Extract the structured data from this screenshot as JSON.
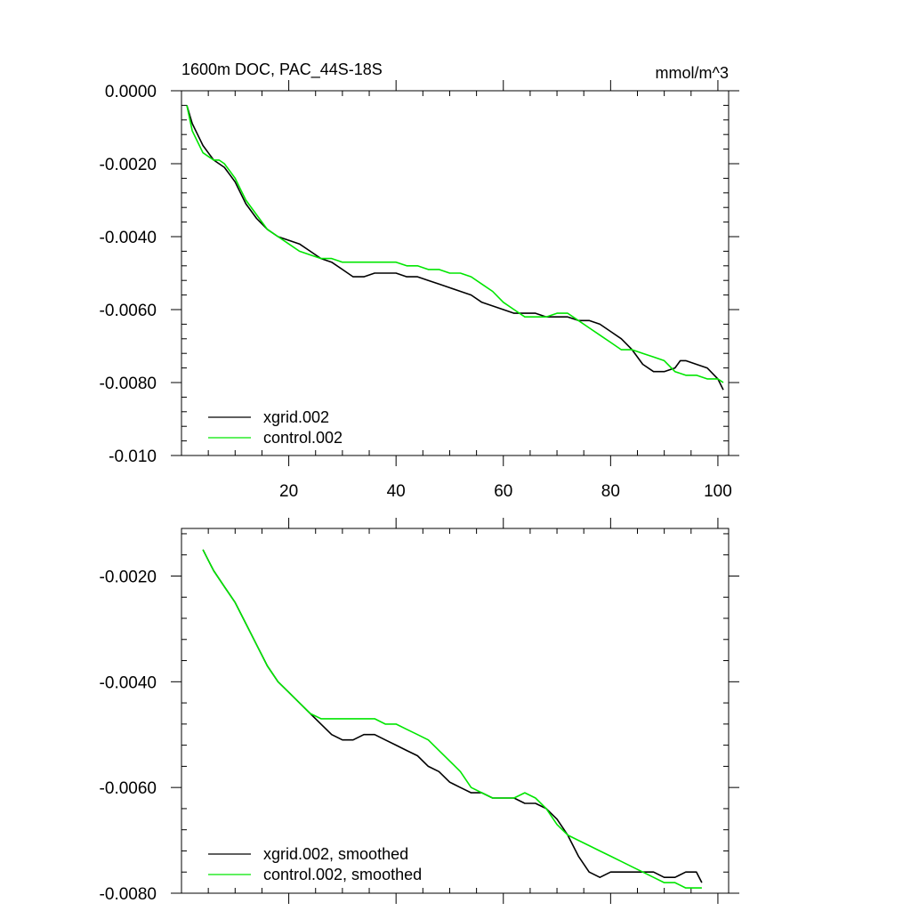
{
  "chart_data": [
    {
      "type": "line",
      "title": "1600m DOC, PAC_44S-18S",
      "units": "mmol/m^3",
      "xlim": [
        0,
        102
      ],
      "ylim": [
        -0.01,
        0.0
      ],
      "x_ticks": [
        20,
        40,
        60,
        80,
        100
      ],
      "x_tick_labels": [
        "20",
        "40",
        "60",
        "80",
        "100"
      ],
      "y_ticks": [
        0.0,
        -0.002,
        -0.004,
        -0.006,
        -0.008,
        -0.01
      ],
      "y_tick_labels": [
        "0.0000",
        "-0.0020",
        "-0.0040",
        "-0.0060",
        "-0.0080",
        "-0.010"
      ],
      "legend_position": "bottom-left",
      "series": [
        {
          "name": "xgrid.002",
          "color": "#000000",
          "x": [
            1,
            2,
            3,
            4,
            5,
            6,
            7,
            8,
            9,
            10,
            11,
            12,
            14,
            16,
            18,
            20,
            22,
            24,
            26,
            28,
            30,
            32,
            34,
            36,
            38,
            40,
            42,
            44,
            46,
            48,
            50,
            52,
            54,
            56,
            58,
            60,
            62,
            64,
            66,
            68,
            70,
            72,
            74,
            76,
            78,
            80,
            82,
            84,
            86,
            88,
            90,
            92,
            93,
            94,
            96,
            98,
            100,
            101
          ],
          "values": [
            -0.0004,
            -0.0009,
            -0.0012,
            -0.0015,
            -0.0017,
            -0.0019,
            -0.002,
            -0.0021,
            -0.0023,
            -0.0025,
            -0.0028,
            -0.0031,
            -0.0035,
            -0.0038,
            -0.004,
            -0.0041,
            -0.0042,
            -0.0044,
            -0.0046,
            -0.0047,
            -0.0049,
            -0.0051,
            -0.0051,
            -0.005,
            -0.005,
            -0.005,
            -0.0051,
            -0.0051,
            -0.0052,
            -0.0053,
            -0.0054,
            -0.0055,
            -0.0056,
            -0.0058,
            -0.0059,
            -0.006,
            -0.0061,
            -0.0061,
            -0.0061,
            -0.0062,
            -0.0062,
            -0.0062,
            -0.0063,
            -0.0063,
            -0.0064,
            -0.0066,
            -0.0068,
            -0.0071,
            -0.0075,
            -0.0077,
            -0.0077,
            -0.0076,
            -0.0074,
            -0.0074,
            -0.0075,
            -0.0076,
            -0.0079,
            -0.0082
          ]
        },
        {
          "name": "control.002",
          "color": "#00e600",
          "x": [
            1,
            2,
            3,
            4,
            5,
            6,
            7,
            8,
            9,
            10,
            11,
            12,
            14,
            16,
            18,
            20,
            22,
            24,
            26,
            28,
            30,
            32,
            34,
            36,
            38,
            40,
            42,
            44,
            46,
            48,
            50,
            52,
            54,
            56,
            58,
            60,
            62,
            64,
            66,
            68,
            70,
            72,
            74,
            76,
            78,
            80,
            82,
            84,
            86,
            88,
            90,
            92,
            94,
            96,
            98,
            100,
            101
          ],
          "values": [
            -0.0004,
            -0.0011,
            -0.0014,
            -0.0017,
            -0.0018,
            -0.0019,
            -0.0019,
            -0.002,
            -0.0022,
            -0.0024,
            -0.0027,
            -0.003,
            -0.0034,
            -0.0038,
            -0.004,
            -0.0042,
            -0.0044,
            -0.0045,
            -0.0046,
            -0.0046,
            -0.0047,
            -0.0047,
            -0.0047,
            -0.0047,
            -0.0047,
            -0.0047,
            -0.0048,
            -0.0048,
            -0.0049,
            -0.0049,
            -0.005,
            -0.005,
            -0.0051,
            -0.0053,
            -0.0055,
            -0.0058,
            -0.006,
            -0.0062,
            -0.0062,
            -0.0062,
            -0.0061,
            -0.0061,
            -0.0063,
            -0.0065,
            -0.0067,
            -0.0069,
            -0.0071,
            -0.0071,
            -0.0072,
            -0.0073,
            -0.0074,
            -0.0077,
            -0.0078,
            -0.0078,
            -0.0079,
            -0.0079,
            -0.008
          ]
        }
      ]
    },
    {
      "type": "line",
      "title": "",
      "xlim": [
        0,
        102
      ],
      "ylim": [
        -0.008,
        -0.0011
      ],
      "x_ticks": [
        20,
        40,
        60,
        80,
        100
      ],
      "y_ticks": [
        -0.002,
        -0.004,
        -0.006,
        -0.008
      ],
      "y_tick_labels": [
        "-0.0020",
        "-0.0040",
        "-0.0060",
        "-0.0080"
      ],
      "legend_position": "bottom-left",
      "series": [
        {
          "name": "xgrid.002, smoothed",
          "color": "#000000",
          "x": [
            4,
            5,
            6,
            8,
            10,
            12,
            14,
            16,
            18,
            20,
            22,
            24,
            26,
            28,
            30,
            32,
            34,
            36,
            38,
            40,
            42,
            44,
            46,
            48,
            50,
            52,
            54,
            56,
            58,
            60,
            62,
            64,
            66,
            68,
            70,
            72,
            74,
            76,
            78,
            80,
            82,
            84,
            86,
            88,
            90,
            92,
            94,
            96,
            97
          ],
          "values": [
            -0.0015,
            -0.0017,
            -0.0019,
            -0.0022,
            -0.0025,
            -0.0029,
            -0.0033,
            -0.0037,
            -0.004,
            -0.0042,
            -0.0044,
            -0.0046,
            -0.0048,
            -0.005,
            -0.0051,
            -0.0051,
            -0.005,
            -0.005,
            -0.0051,
            -0.0052,
            -0.0053,
            -0.0054,
            -0.0056,
            -0.0057,
            -0.0059,
            -0.006,
            -0.0061,
            -0.0061,
            -0.0062,
            -0.0062,
            -0.0062,
            -0.0063,
            -0.0063,
            -0.0064,
            -0.0066,
            -0.0069,
            -0.0073,
            -0.0076,
            -0.0077,
            -0.0076,
            -0.0076,
            -0.0076,
            -0.0076,
            -0.0076,
            -0.0077,
            -0.0077,
            -0.0076,
            -0.0076,
            -0.0078
          ]
        },
        {
          "name": "control.002, smoothed",
          "color": "#00e600",
          "x": [
            4,
            5,
            6,
            8,
            10,
            12,
            14,
            16,
            18,
            20,
            22,
            24,
            26,
            28,
            30,
            32,
            34,
            36,
            38,
            40,
            42,
            44,
            46,
            48,
            50,
            52,
            54,
            56,
            58,
            60,
            62,
            64,
            66,
            68,
            70,
            72,
            74,
            76,
            78,
            80,
            82,
            84,
            86,
            88,
            90,
            92,
            94,
            96,
            97
          ],
          "values": [
            -0.0015,
            -0.0017,
            -0.0019,
            -0.0022,
            -0.0025,
            -0.0029,
            -0.0033,
            -0.0037,
            -0.004,
            -0.0042,
            -0.0044,
            -0.0046,
            -0.0047,
            -0.0047,
            -0.0047,
            -0.0047,
            -0.0047,
            -0.0047,
            -0.0048,
            -0.0048,
            -0.0049,
            -0.005,
            -0.0051,
            -0.0053,
            -0.0055,
            -0.0057,
            -0.006,
            -0.0061,
            -0.0062,
            -0.0062,
            -0.0062,
            -0.0061,
            -0.0062,
            -0.0064,
            -0.0067,
            -0.0069,
            -0.007,
            -0.0071,
            -0.0072,
            -0.0073,
            -0.0074,
            -0.0075,
            -0.0076,
            -0.0077,
            -0.0078,
            -0.0078,
            -0.0079,
            -0.0079,
            -0.0079
          ]
        }
      ]
    }
  ]
}
